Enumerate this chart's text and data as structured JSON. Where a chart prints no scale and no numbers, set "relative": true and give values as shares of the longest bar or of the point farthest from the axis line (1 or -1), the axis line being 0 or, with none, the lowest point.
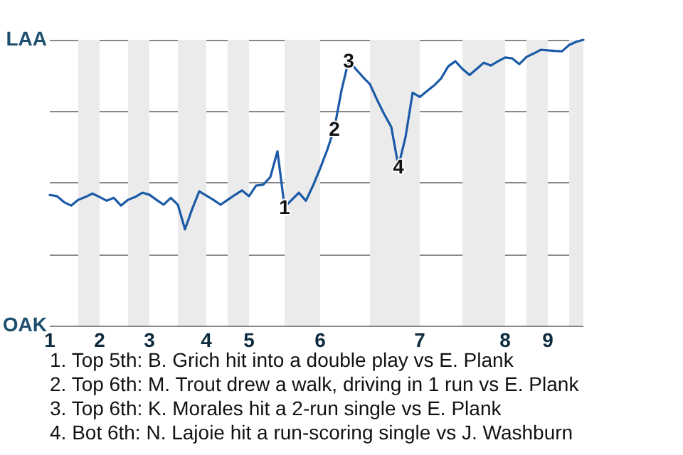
{
  "chart_data": {
    "type": "line",
    "categories": [
      "1",
      null,
      null,
      null,
      null,
      null,
      null,
      "2",
      null,
      null,
      null,
      null,
      null,
      null,
      "3",
      null,
      null,
      null,
      null,
      null,
      null,
      null,
      "4",
      null,
      null,
      null,
      null,
      null,
      "5",
      null,
      null,
      null,
      null,
      null,
      null,
      null,
      null,
      null,
      "6",
      null,
      null,
      null,
      null,
      null,
      null,
      null,
      null,
      null,
      null,
      null,
      null,
      null,
      "7",
      null,
      null,
      null,
      null,
      null,
      null,
      null,
      null,
      null,
      null,
      null,
      "8",
      null,
      null,
      null,
      null,
      null,
      "9",
      null,
      null,
      null,
      null,
      null
    ],
    "relative": true,
    "series": [
      {
        "color": "#1a5aa6",
        "values": [
          0.457,
          0.453,
          0.432,
          0.42,
          0.44,
          0.45,
          0.462,
          0.45,
          0.437,
          0.447,
          0.42,
          0.44,
          0.45,
          0.465,
          0.458,
          0.44,
          0.423,
          0.447,
          0.423,
          0.337,
          0.407,
          0.47,
          0.455,
          0.44,
          0.423,
          0.44,
          0.457,
          0.473,
          0.453,
          0.49,
          0.493,
          0.52,
          0.61,
          0.415,
          0.44,
          0.465,
          0.437,
          0.49,
          0.55,
          0.615,
          0.69,
          0.823,
          0.927,
          0.898,
          0.87,
          0.845,
          0.79,
          0.74,
          0.695,
          0.557,
          0.66,
          0.815,
          0.8,
          0.82,
          0.84,
          0.865,
          0.907,
          0.925,
          0.898,
          0.877,
          0.898,
          0.92,
          0.91,
          0.925,
          0.938,
          0.935,
          0.915,
          0.94,
          0.952,
          0.965,
          0.963,
          0.961,
          0.96,
          0.982,
          0.993,
          1
        ]
      }
    ],
    "grid": "y",
    "marker": "none",
    "line_style": "solid",
    "annotations": [
      "LAA",
      "OAK",
      {
        "text": "1",
        "y": 0.415
      },
      {
        "text": "2",
        "y": 0.69
      },
      {
        "text": "3",
        "y": 0.927
      },
      {
        "text": "4",
        "y": 0.557
      },
      "1. Top 5th: B. Grich hit into a double play vs E. Plank",
      "2. Top 6th: M. Trout drew a walk, driving in 1 run vs E. Plank",
      "3. Top 6th: K. Morales hit a 2-run single vs E. Plank",
      "4. Bot 6th: N. Lajoie hit a run-scoring single vs J. Washburn"
    ]
  }
}
